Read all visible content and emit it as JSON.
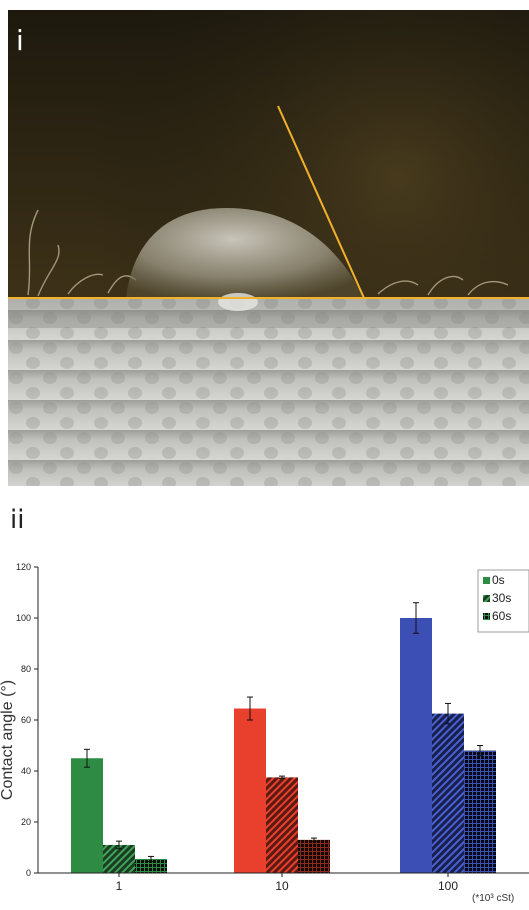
{
  "panels": {
    "top": "i",
    "bottom": "ii"
  },
  "colors": {
    "bg_dark": "#221d0f",
    "bg_mid": "#3d3118",
    "fabric": "#c9cac4",
    "guide_line": "#f2b12a",
    "series_1": "#2e8b43",
    "series_10": "#e8402c",
    "series_100": "#3b4fb4",
    "bar_dark": "#111111"
  },
  "chart_data": {
    "type": "bar",
    "categories": [
      "1",
      "10",
      "100"
    ],
    "category_colors": [
      "#2e8b43",
      "#e8402c",
      "#3b4fb4"
    ],
    "series": [
      {
        "name": "0s",
        "values": [
          45,
          64.5,
          100
        ],
        "errors": [
          3.5,
          4.5,
          6
        ],
        "pattern": "solid"
      },
      {
        "name": "30s",
        "values": [
          11,
          37.5,
          62.5
        ],
        "errors": [
          1.5,
          0.5,
          4
        ],
        "pattern": "hatched"
      },
      {
        "name": "60s",
        "values": [
          5.5,
          13,
          48
        ],
        "errors": [
          1,
          0.7,
          2
        ],
        "pattern": "dark-grid"
      }
    ],
    "ylabel": "Contact angle (°)",
    "ylim": [
      0,
      120
    ],
    "yticks": [
      0,
      20,
      40,
      60,
      80,
      100,
      120
    ],
    "x_unit_note": "(*10³ cSt)",
    "legend_position": "top-right"
  }
}
